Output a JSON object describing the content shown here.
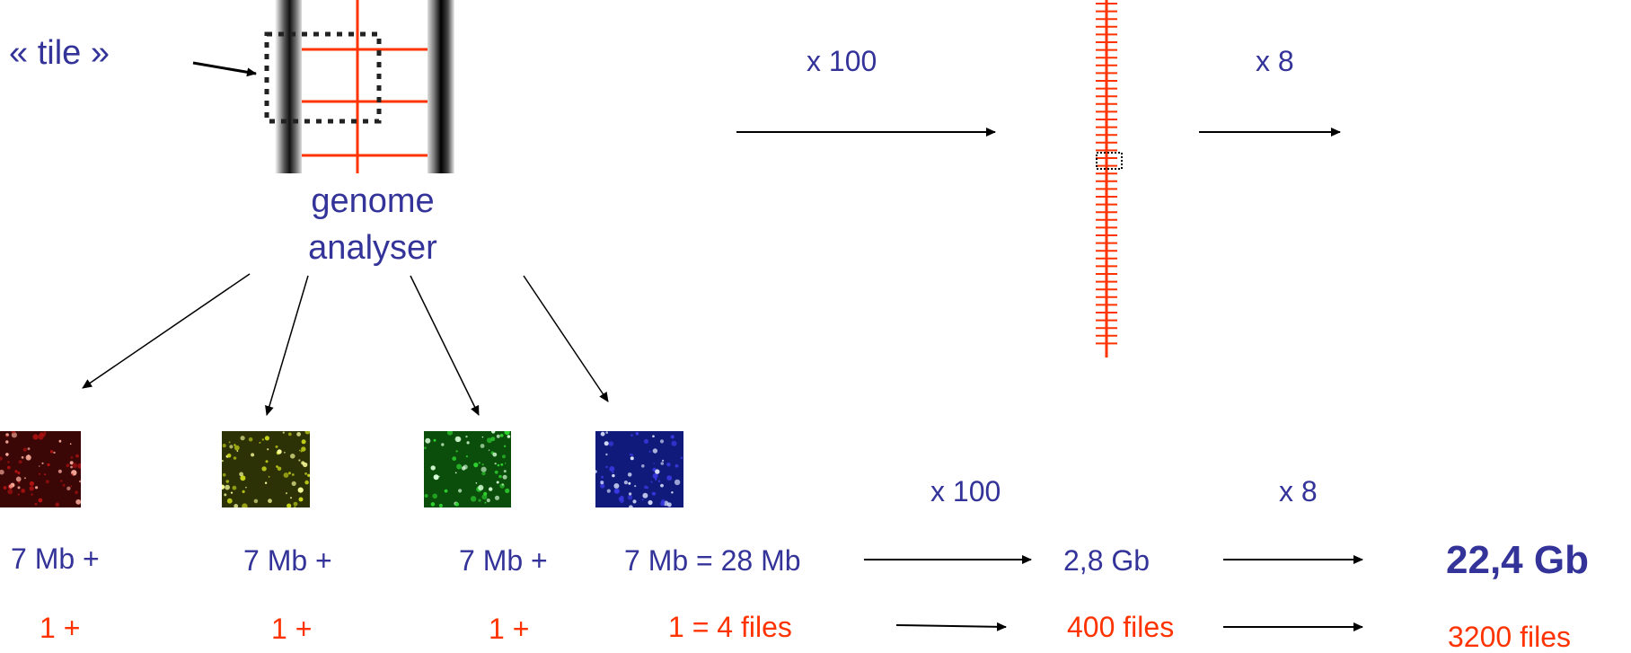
{
  "labels": {
    "tile": "« tile »",
    "genome_line1": "genome",
    "genome_line2": "analyser",
    "top_mult_100": "x 100",
    "top_mult_8": "x 8",
    "bottom_mult_100": "x 100",
    "bottom_mult_8": "x 8"
  },
  "sizes": {
    "ch1": "7 Mb +",
    "ch2": "7 Mb +",
    "ch3": "7 Mb +",
    "ch4": "7 Mb = 28 Mb",
    "mid": "2,8 Gb",
    "total": "22,4 Gb"
  },
  "files": {
    "ch1": "1 +",
    "ch2": "1 +",
    "ch3": "1 +",
    "ch4": "1 = 4 files",
    "mid": "400 files",
    "total": "3200 files"
  },
  "colors": {
    "text_blue": "#333399",
    "text_red": "#ff3300",
    "channel_red": "#b31212",
    "channel_yellow": "#c6d41a",
    "channel_green": "#2fd12f",
    "channel_blue": "#3a3ae6"
  }
}
